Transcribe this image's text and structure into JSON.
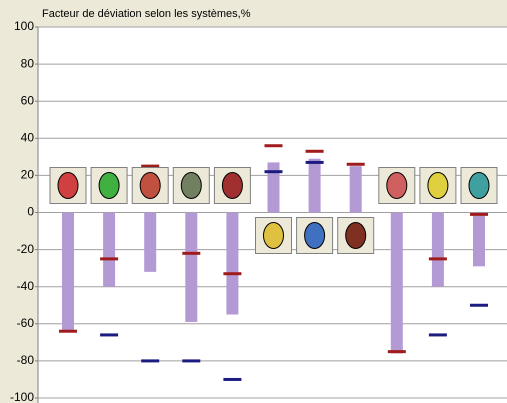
{
  "chart_data": {
    "type": "bar",
    "title": "Facteur de déviation selon les systèmes,%",
    "categories": [
      null,
      null,
      null,
      null,
      null,
      null,
      null,
      null,
      null,
      null,
      null
    ],
    "series": [
      {
        "color": "#b49ad4",
        "values": [
          -64,
          -40,
          -32,
          -59,
          -55,
          27,
          29,
          25,
          -76,
          -40,
          -29
        ]
      },
      {
        "color": "#a01c1c",
        "values": [
          -64,
          -25,
          25,
          -22,
          -33,
          36,
          33,
          26,
          -75,
          -25,
          -1
        ]
      },
      {
        "color": "#1c1c80",
        "values": [
          null,
          -66,
          -80,
          -80,
          -90,
          22,
          27,
          null,
          null,
          -66,
          -50
        ]
      }
    ],
    "ylim": [
      -100,
      100
    ],
    "yticks": [
      100,
      80,
      60,
      40,
      20,
      0,
      -20,
      -40,
      -60,
      -80,
      -100
    ],
    "grid": true
  }
}
